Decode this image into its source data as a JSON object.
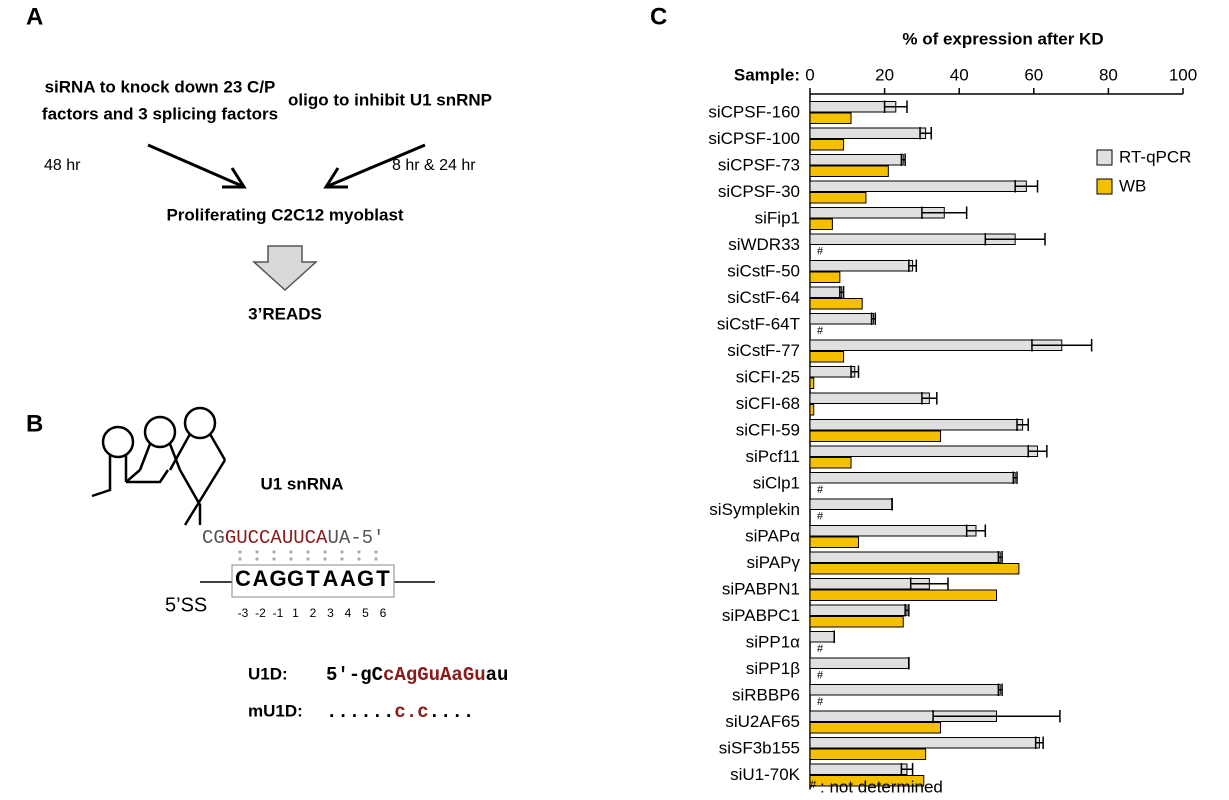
{
  "panel_a": {
    "label": "A",
    "left_text": [
      "siRNA to knock down 23 C/P",
      "factors and 3 splicing factors"
    ],
    "right_text": "oligo to inhibit U1 snRNP",
    "left_time": "48 hr",
    "right_time": "8 hr & 24 hr",
    "target": "Proliferating C2C12 myoblast",
    "result": "3’READS"
  },
  "panel_b": {
    "label": "B",
    "rna_name": "U1 snRNA",
    "u1_seq": [
      "CG",
      "GUCCAUUCA",
      "UA-5′"
    ],
    "logo": [
      "C",
      "A",
      "G",
      "G",
      "T",
      "A",
      "A",
      "G",
      "T"
    ],
    "site_label": "5’SS",
    "positions": [
      "-3",
      "-2",
      "-1",
      "1",
      "2",
      "3",
      "4",
      "5",
      "6"
    ],
    "oligos": [
      {
        "name": "U1D:",
        "seq": [
          "5′-gC",
          "cAgGuAaGu",
          "au"
        ]
      },
      {
        "name": "mU1D:",
        "seq": [
          "......",
          "c.c",
          "...."
        ]
      }
    ]
  },
  "chart_data": {
    "type": "bar",
    "orientation": "horizontal",
    "panel_label": "C",
    "title": "% of expression after KD",
    "axis_label": "Sample:",
    "categories": [
      "siCPSF-160",
      "siCPSF-100",
      "siCPSF-73",
      "siCPSF-30",
      "siFip1",
      "siWDR33",
      "siCstF-50",
      "siCstF-64",
      "siCstF-64T",
      "siCstF-77",
      "siCFI-25",
      "siCFI-68",
      "siCFI-59",
      "siPcf11",
      "siClp1",
      "siSymplekin",
      "siPAPα",
      "siPAPγ",
      "siPABPN1",
      "siPABPC1",
      "siPP1α",
      "siPP1β",
      "siRBBP6",
      "siU2AF65",
      "siSF3b155",
      "siU1-70K"
    ],
    "series": [
      {
        "name": "RT-qPCR",
        "color": "#e0e0e0",
        "values": [
          23,
          31,
          25,
          58,
          36,
          55,
          27.5,
          8.5,
          17,
          67.5,
          12,
          32,
          57,
          61,
          55,
          22,
          44.5,
          51,
          32,
          26,
          6.5,
          26.5,
          51,
          50,
          61.5,
          26
        ],
        "errors": [
          3,
          1.5,
          0.5,
          3,
          6,
          8,
          1,
          0.5,
          0.5,
          8,
          1,
          2,
          1.5,
          2.5,
          0.5,
          0,
          2.5,
          0.5,
          5,
          0.5,
          0,
          0,
          0.5,
          17,
          1,
          1.5
        ]
      },
      {
        "name": "WB",
        "color": "#f5c000",
        "values": [
          11,
          9,
          21,
          15,
          6,
          null,
          8,
          14,
          null,
          9,
          1,
          1,
          35,
          11,
          null,
          null,
          13,
          56,
          50,
          25,
          null,
          null,
          null,
          35,
          31,
          30.5
        ]
      }
    ],
    "xlim": [
      0,
      100
    ],
    "xticks": [
      0,
      20,
      40,
      60,
      80,
      100
    ],
    "na_marker": "#",
    "footnote": ": not determined"
  }
}
